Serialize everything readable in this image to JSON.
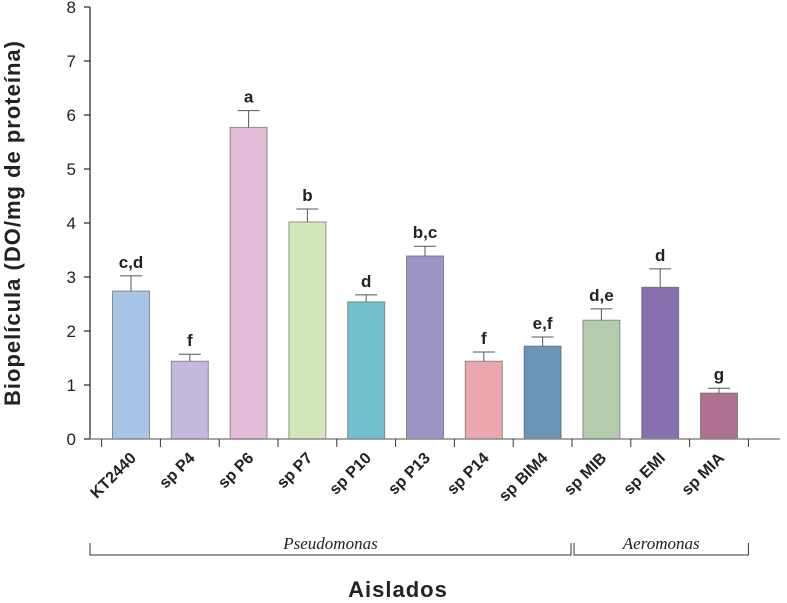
{
  "chart_data": {
    "type": "bar",
    "title": "",
    "xlabel": "Aislados",
    "ylabel": "Biopelícula (DO/mg de proteína)",
    "ylim": [
      0,
      8
    ],
    "yticks": [
      "0",
      "1",
      "2",
      "3",
      "4",
      "5",
      "6",
      "7",
      "8"
    ],
    "grid": false,
    "categories": [
      "KT2440",
      "sp P4",
      "sp P6",
      "sp P7",
      "sp P10",
      "sp P13",
      "sp P14",
      "sp BIM4",
      "sp MIB",
      "sp EMI",
      "sp MIA"
    ],
    "values": [
      2.74,
      1.44,
      5.77,
      4.02,
      2.54,
      3.39,
      1.44,
      1.72,
      2.2,
      2.81,
      0.85
    ],
    "error": [
      0.28,
      0.13,
      0.31,
      0.24,
      0.13,
      0.18,
      0.17,
      0.17,
      0.21,
      0.34,
      0.09
    ],
    "significance": [
      "c,d",
      "f",
      "a",
      "b",
      "d",
      "b,c",
      "f",
      "e,f",
      "d,e",
      "d",
      "g"
    ],
    "colors": [
      "#a8c4e6",
      "#c4b8dc",
      "#e2bcd8",
      "#d2e8b8",
      "#72c0d0",
      "#9e94c4",
      "#eaa8ae",
      "#6a94b8",
      "#b4ccae",
      "#8870b0",
      "#b07094"
    ],
    "groups": [
      {
        "label": "Pseudomonas",
        "from": 0,
        "to": 7
      },
      {
        "label": "Aeromonas",
        "from": 8,
        "to": 10
      }
    ]
  }
}
